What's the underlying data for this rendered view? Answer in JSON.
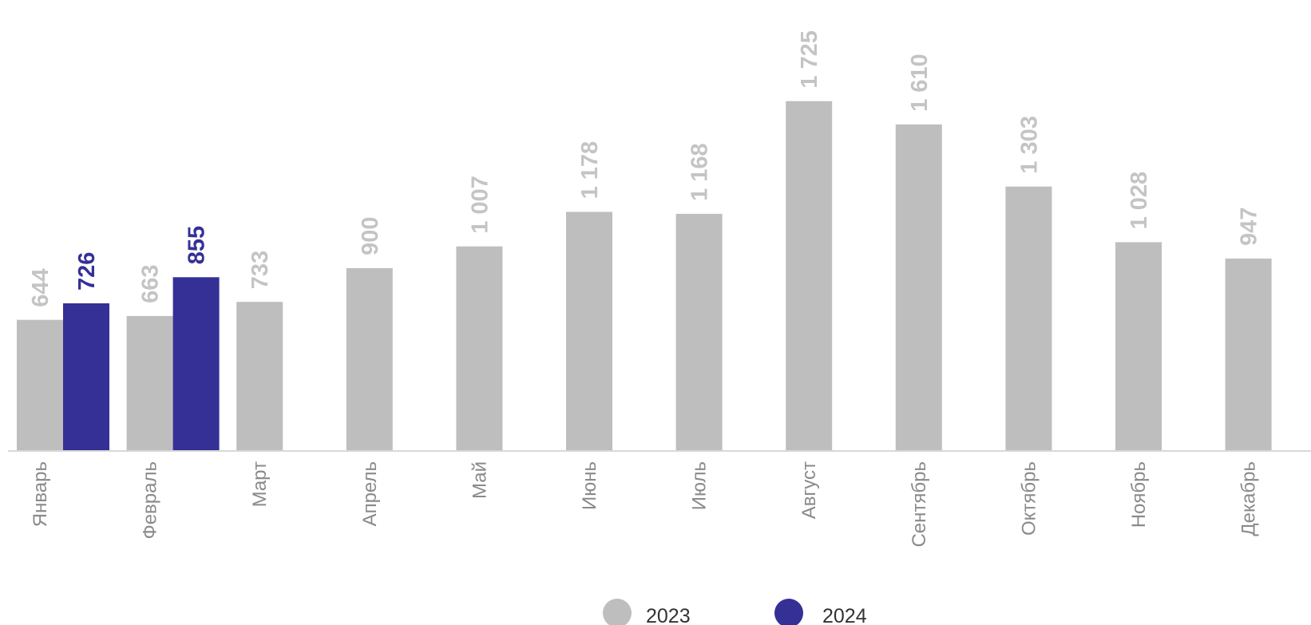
{
  "chart_data": {
    "type": "bar",
    "categories": [
      "Январь",
      "Февраль",
      "Март",
      "Апрель",
      "Май",
      "Июнь",
      "Июль",
      "Август",
      "Сентябрь",
      "Октябрь",
      "Ноябрь",
      "Декабрь"
    ],
    "series": [
      {
        "name": "2023",
        "color": "#bebebe",
        "label_color": "#c4c4c4",
        "values": [
          644,
          663,
          733,
          900,
          1007,
          1178,
          1168,
          1725,
          1610,
          1303,
          1028,
          947
        ],
        "labels": [
          "644",
          "663",
          "733",
          "900",
          "1 007",
          "1 178",
          "1 168",
          "1 725",
          "1 610",
          "1 303",
          "1 028",
          "947"
        ]
      },
      {
        "name": "2024",
        "color": "#353096",
        "label_color": "#353096",
        "values": [
          726,
          855,
          null,
          null,
          null,
          null,
          null,
          null,
          null,
          null,
          null,
          null
        ],
        "labels": [
          "726",
          "855",
          "",
          "",
          "",
          "",
          "",
          "",
          "",
          "",
          "",
          ""
        ]
      }
    ],
    "title": "",
    "xlabel": "",
    "ylabel": "",
    "grid": false,
    "legend": "bottom-center",
    "axis_color": "#d8d8d8"
  }
}
